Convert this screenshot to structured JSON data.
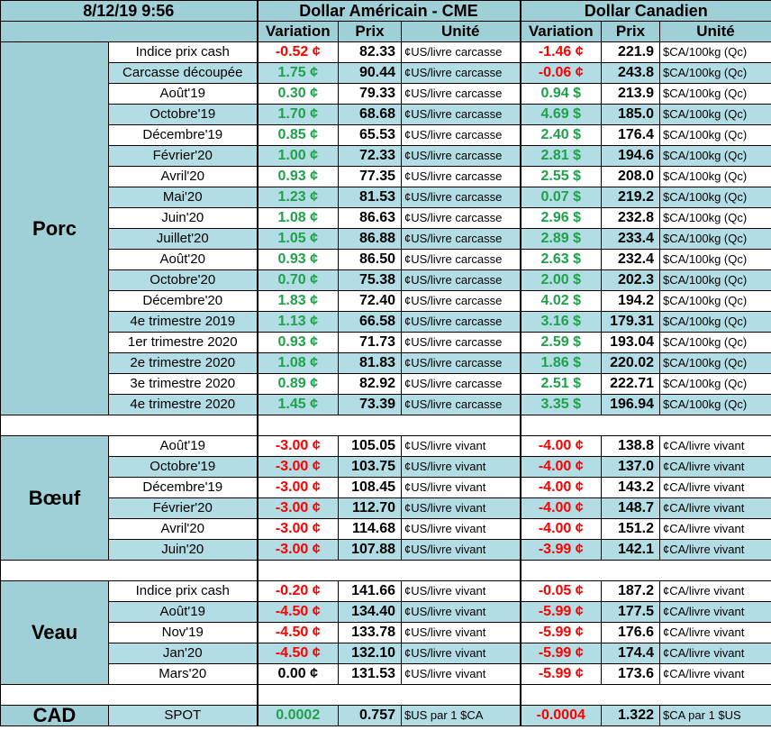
{
  "header": {
    "datetime": "8/12/19 9:56",
    "usd_title": "Dollar Américain - CME",
    "cad_title": "Dollar Canadien",
    "col_variation": "Variation",
    "col_prix": "Prix",
    "col_unite": "Unité"
  },
  "groups": [
    {
      "name": "Porc",
      "rows": [
        {
          "label": "Indice prix cash",
          "usd_var": "-0.52 ¢",
          "usd_var_sign": "neg",
          "usd_price": "82.33",
          "usd_unit": "¢US/livre carcasse",
          "cad_var": "-1.46 ¢",
          "cad_var_sign": "neg",
          "cad_price": "221.9",
          "cad_unit": "$CA/100kg (Qc)"
        },
        {
          "label": "Carcasse découpée",
          "usd_var": "1.75 ¢",
          "usd_var_sign": "pos",
          "usd_price": "90.44",
          "usd_unit": "¢US/livre carcasse",
          "cad_var": "-0.06 ¢",
          "cad_var_sign": "neg",
          "cad_price": "243.8",
          "cad_unit": "$CA/100kg (Qc)"
        },
        {
          "label": "Août'19",
          "usd_var": "0.30 ¢",
          "usd_var_sign": "pos",
          "usd_price": "79.33",
          "usd_unit": "¢US/livre carcasse",
          "cad_var": "0.94 $",
          "cad_var_sign": "pos",
          "cad_price": "213.9",
          "cad_unit": "$CA/100kg (Qc)"
        },
        {
          "label": "Octobre'19",
          "usd_var": "1.70 ¢",
          "usd_var_sign": "pos",
          "usd_price": "68.68",
          "usd_unit": "¢US/livre carcasse",
          "cad_var": "4.69 $",
          "cad_var_sign": "pos",
          "cad_price": "185.0",
          "cad_unit": "$CA/100kg (Qc)"
        },
        {
          "label": "Décembre'19",
          "usd_var": "0.85 ¢",
          "usd_var_sign": "pos",
          "usd_price": "65.53",
          "usd_unit": "¢US/livre carcasse",
          "cad_var": "2.40 $",
          "cad_var_sign": "pos",
          "cad_price": "176.4",
          "cad_unit": "$CA/100kg (Qc)"
        },
        {
          "label": "Février'20",
          "usd_var": "1.00 ¢",
          "usd_var_sign": "pos",
          "usd_price": "72.33",
          "usd_unit": "¢US/livre carcasse",
          "cad_var": "2.81 $",
          "cad_var_sign": "pos",
          "cad_price": "194.6",
          "cad_unit": "$CA/100kg (Qc)"
        },
        {
          "label": "Avril'20",
          "usd_var": "0.93 ¢",
          "usd_var_sign": "pos",
          "usd_price": "77.35",
          "usd_unit": "¢US/livre carcasse",
          "cad_var": "2.55 $",
          "cad_var_sign": "pos",
          "cad_price": "208.0",
          "cad_unit": "$CA/100kg (Qc)"
        },
        {
          "label": "Mai'20",
          "usd_var": "1.23 ¢",
          "usd_var_sign": "pos",
          "usd_price": "81.53",
          "usd_unit": "¢US/livre carcasse",
          "cad_var": "0.07 $",
          "cad_var_sign": "pos",
          "cad_price": "219.2",
          "cad_unit": "$CA/100kg (Qc)"
        },
        {
          "label": "Juin'20",
          "usd_var": "1.08 ¢",
          "usd_var_sign": "pos",
          "usd_price": "86.63",
          "usd_unit": "¢US/livre carcasse",
          "cad_var": "2.96 $",
          "cad_var_sign": "pos",
          "cad_price": "232.8",
          "cad_unit": "$CA/100kg (Qc)"
        },
        {
          "label": "Juillet'20",
          "usd_var": "1.05 ¢",
          "usd_var_sign": "pos",
          "usd_price": "86.88",
          "usd_unit": "¢US/livre carcasse",
          "cad_var": "2.89 $",
          "cad_var_sign": "pos",
          "cad_price": "233.4",
          "cad_unit": "$CA/100kg (Qc)"
        },
        {
          "label": "Août'20",
          "usd_var": "0.93 ¢",
          "usd_var_sign": "pos",
          "usd_price": "86.50",
          "usd_unit": "¢US/livre carcasse",
          "cad_var": "2.63 $",
          "cad_var_sign": "pos",
          "cad_price": "232.4",
          "cad_unit": "$CA/100kg (Qc)"
        },
        {
          "label": "Octobre'20",
          "usd_var": "0.70 ¢",
          "usd_var_sign": "pos",
          "usd_price": "75.38",
          "usd_unit": "¢US/livre carcasse",
          "cad_var": "2.00 $",
          "cad_var_sign": "pos",
          "cad_price": "202.3",
          "cad_unit": "$CA/100kg (Qc)"
        },
        {
          "label": "Décembre'20",
          "usd_var": "1.83 ¢",
          "usd_var_sign": "pos",
          "usd_price": "72.40",
          "usd_unit": "¢US/livre carcasse",
          "cad_var": "4.02 $",
          "cad_var_sign": "pos",
          "cad_price": "194.2",
          "cad_unit": "$CA/100kg (Qc)"
        },
        {
          "label": "4e trimestre 2019",
          "usd_var": "1.13 ¢",
          "usd_var_sign": "pos",
          "usd_price": "66.58",
          "usd_unit": "¢US/livre carcasse",
          "cad_var": "3.16 $",
          "cad_var_sign": "pos",
          "cad_price": "179.31",
          "cad_unit": "$CA/100kg (Qc)"
        },
        {
          "label": "1er trimestre 2020",
          "usd_var": "0.93 ¢",
          "usd_var_sign": "pos",
          "usd_price": "71.73",
          "usd_unit": "¢US/livre carcasse",
          "cad_var": "2.59 $",
          "cad_var_sign": "pos",
          "cad_price": "193.04",
          "cad_unit": "$CA/100kg (Qc)"
        },
        {
          "label": "2e trimestre 2020",
          "usd_var": "1.08 ¢",
          "usd_var_sign": "pos",
          "usd_price": "81.83",
          "usd_unit": "¢US/livre carcasse",
          "cad_var": "1.86 $",
          "cad_var_sign": "pos",
          "cad_price": "220.02",
          "cad_unit": "$CA/100kg (Qc)"
        },
        {
          "label": "3e trimestre 2020",
          "usd_var": "0.89 ¢",
          "usd_var_sign": "pos",
          "usd_price": "82.92",
          "usd_unit": "¢US/livre carcasse",
          "cad_var": "2.51 $",
          "cad_var_sign": "pos",
          "cad_price": "222.71",
          "cad_unit": "$CA/100kg (Qc)"
        },
        {
          "label": "4e trimestre 2020",
          "usd_var": "1.45 ¢",
          "usd_var_sign": "pos",
          "usd_price": "73.39",
          "usd_unit": "¢US/livre carcasse",
          "cad_var": "3.35 $",
          "cad_var_sign": "pos",
          "cad_price": "196.94",
          "cad_unit": "$CA/100kg (Qc)"
        }
      ]
    },
    {
      "name": "Bœuf",
      "rows": [
        {
          "label": "Août'19",
          "usd_var": "-3.00 ¢",
          "usd_var_sign": "neg",
          "usd_price": "105.05",
          "usd_unit": "¢US/livre vivant",
          "cad_var": "-4.00 ¢",
          "cad_var_sign": "neg",
          "cad_price": "138.8",
          "cad_unit": "¢CA/livre vivant"
        },
        {
          "label": "Octobre'19",
          "usd_var": "-3.00 ¢",
          "usd_var_sign": "neg",
          "usd_price": "103.75",
          "usd_unit": "¢US/livre vivant",
          "cad_var": "-4.00 ¢",
          "cad_var_sign": "neg",
          "cad_price": "137.0",
          "cad_unit": "¢CA/livre vivant"
        },
        {
          "label": "Décembre'19",
          "usd_var": "-3.00 ¢",
          "usd_var_sign": "neg",
          "usd_price": "108.45",
          "usd_unit": "¢US/livre vivant",
          "cad_var": "-4.00 ¢",
          "cad_var_sign": "neg",
          "cad_price": "143.2",
          "cad_unit": "¢CA/livre vivant"
        },
        {
          "label": "Février'20",
          "usd_var": "-3.00 ¢",
          "usd_var_sign": "neg",
          "usd_price": "112.70",
          "usd_unit": "¢US/livre vivant",
          "cad_var": "-4.00 ¢",
          "cad_var_sign": "neg",
          "cad_price": "148.7",
          "cad_unit": "¢CA/livre vivant"
        },
        {
          "label": "Avril'20",
          "usd_var": "-3.00 ¢",
          "usd_var_sign": "neg",
          "usd_price": "114.68",
          "usd_unit": "¢US/livre vivant",
          "cad_var": "-4.00 ¢",
          "cad_var_sign": "neg",
          "cad_price": "151.2",
          "cad_unit": "¢CA/livre vivant"
        },
        {
          "label": "Juin'20",
          "usd_var": "-3.00 ¢",
          "usd_var_sign": "neg",
          "usd_price": "107.88",
          "usd_unit": "¢US/livre vivant",
          "cad_var": "-3.99 ¢",
          "cad_var_sign": "neg",
          "cad_price": "142.1",
          "cad_unit": "¢CA/livre vivant"
        }
      ]
    },
    {
      "name": "Veau",
      "rows": [
        {
          "label": "Indice prix cash",
          "usd_var": "-0.20 ¢",
          "usd_var_sign": "neg",
          "usd_price": "141.66",
          "usd_unit": "¢US/livre vivant",
          "cad_var": "-0.05 ¢",
          "cad_var_sign": "neg",
          "cad_price": "187.2",
          "cad_unit": "¢CA/livre vivant"
        },
        {
          "label": "Août'19",
          "usd_var": "-4.50 ¢",
          "usd_var_sign": "neg",
          "usd_price": "134.40",
          "usd_unit": "¢US/livre vivant",
          "cad_var": "-5.99 ¢",
          "cad_var_sign": "neg",
          "cad_price": "177.5",
          "cad_unit": "¢CA/livre vivant"
        },
        {
          "label": "Nov'19",
          "usd_var": "-4.50 ¢",
          "usd_var_sign": "neg",
          "usd_price": "133.78",
          "usd_unit": "¢US/livre vivant",
          "cad_var": "-5.99 ¢",
          "cad_var_sign": "neg",
          "cad_price": "176.6",
          "cad_unit": "¢CA/livre vivant"
        },
        {
          "label": "Jan'20",
          "usd_var": "-4.50 ¢",
          "usd_var_sign": "neg",
          "usd_price": "132.10",
          "usd_unit": "¢US/livre vivant",
          "cad_var": "-5.99 ¢",
          "cad_var_sign": "neg",
          "cad_price": "174.4",
          "cad_unit": "¢CA/livre vivant"
        },
        {
          "label": "Mars'20",
          "usd_var": "0.00 ¢",
          "usd_var_sign": "neu",
          "usd_price": "131.53",
          "usd_unit": "¢US/livre vivant",
          "cad_var": "-5.99 ¢",
          "cad_var_sign": "neg",
          "cad_price": "173.6",
          "cad_unit": "¢CA/livre vivant"
        }
      ]
    }
  ],
  "cad": {
    "name": "CAD",
    "label": "SPOT",
    "usd_var": "0.0002",
    "usd_var_sign": "pos",
    "usd_price": "0.757",
    "usd_unit": "$US par 1 $CA",
    "cad_var": "-0.0004",
    "cad_var_sign": "neg",
    "cad_price": "1.322",
    "cad_unit": "$CA par 1 $US"
  },
  "colors": {
    "header_bg": "#9fd0d8",
    "row_alt_bg": "#b3dde5",
    "negative": "#ff0000",
    "positive": "#1fa14a"
  }
}
